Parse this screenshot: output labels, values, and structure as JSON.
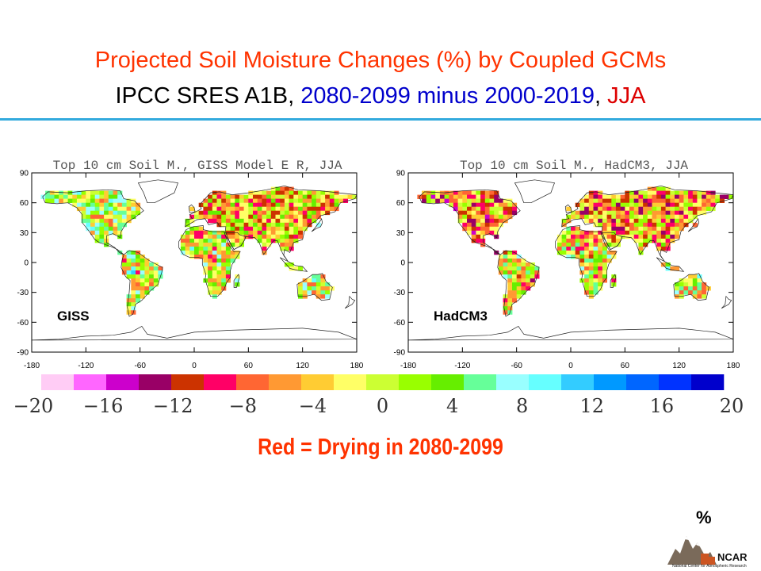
{
  "slide": {
    "title_line1": "Projected Soil Moisture Changes (%) by Coupled GCMs",
    "title_line2_a": "IPCC SRES A1B,",
    "title_line2_b": "2080-2099 minus 2000-2019",
    "title_line2_c": ",",
    "title_line2_d": "JJA",
    "caption": "Red = Drying in 2080-2099",
    "unit_label": "%",
    "logo_text": "NCAR",
    "logo_subtext": "National Center for Atmospheric Research",
    "colors": {
      "title": "#ff3300",
      "blue": "#0000cc",
      "red": "#dd0000",
      "rule": "#33aadd"
    }
  },
  "chart_data": [
    {
      "type": "heatmap",
      "title": "Top 10 cm Soil M., GISS Model E R, JJA",
      "model_label": "GISS",
      "x_ticks": [
        "-180",
        "-120",
        "-60",
        "0",
        "60",
        "120",
        "180"
      ],
      "y_ticks": [
        "90",
        "60",
        "30",
        "0",
        "-30",
        "-60",
        "-90"
      ],
      "xlim": [
        -180,
        180
      ],
      "ylim": [
        -90,
        90
      ],
      "palette": "shared colorbar below"
    },
    {
      "type": "heatmap",
      "title": "Top 10 cm Soil M., HadCM3, JJA",
      "model_label": "HadCM3",
      "x_ticks": [
        "-180",
        "-120",
        "-60",
        "0",
        "60",
        "120",
        "180"
      ],
      "y_ticks": [
        "90",
        "60",
        "30",
        "0",
        "-30",
        "-60",
        "-90"
      ],
      "xlim": [
        -180,
        180
      ],
      "ylim": [
        -90,
        90
      ],
      "palette": "shared colorbar below"
    }
  ],
  "colorbar": {
    "tick_labels": [
      "−20",
      "−16",
      "−12",
      "−8",
      "−4",
      "0",
      "4",
      "8",
      "12",
      "16",
      "20"
    ],
    "range": [
      -20,
      20
    ],
    "bin_width": 2,
    "colors": [
      "#ffccf5",
      "#ff66ff",
      "#cc00cc",
      "#990066",
      "#cc3300",
      "#ff0066",
      "#ff6633",
      "#ff9933",
      "#ffcc33",
      "#ffff66",
      "#ccff33",
      "#99ff00",
      "#66ee00",
      "#66ff99",
      "#99ffff",
      "#66ffff",
      "#33ccff",
      "#0099ff",
      "#0066ff",
      "#0033ff",
      "#0000cc"
    ]
  }
}
